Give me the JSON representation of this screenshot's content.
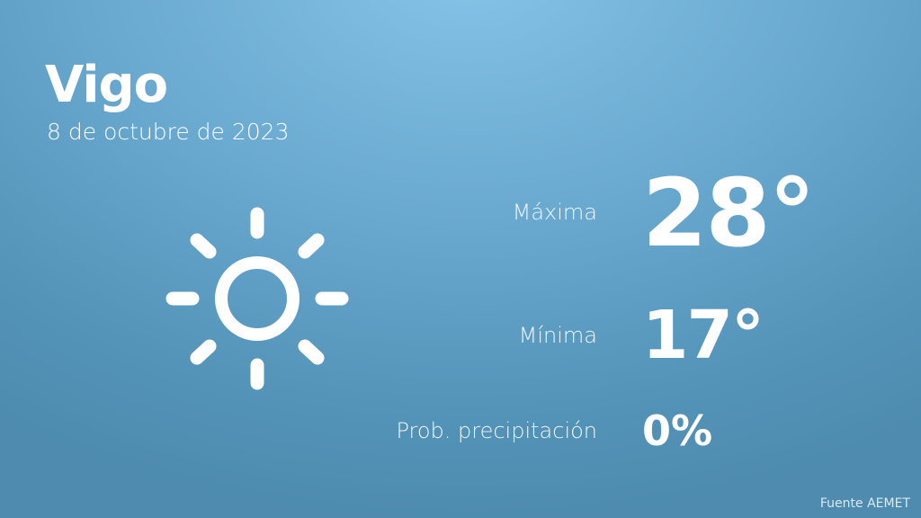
{
  "city": "Vigo",
  "date": "8 de octubre de 2023",
  "icon": "sun-icon",
  "stats": [
    {
      "label": "Máxima",
      "value": "28°"
    },
    {
      "label": "Mínima",
      "value": "17°"
    },
    {
      "label": "Prob. precipitación",
      "value": "0%"
    }
  ],
  "source": "Fuente AEMET"
}
